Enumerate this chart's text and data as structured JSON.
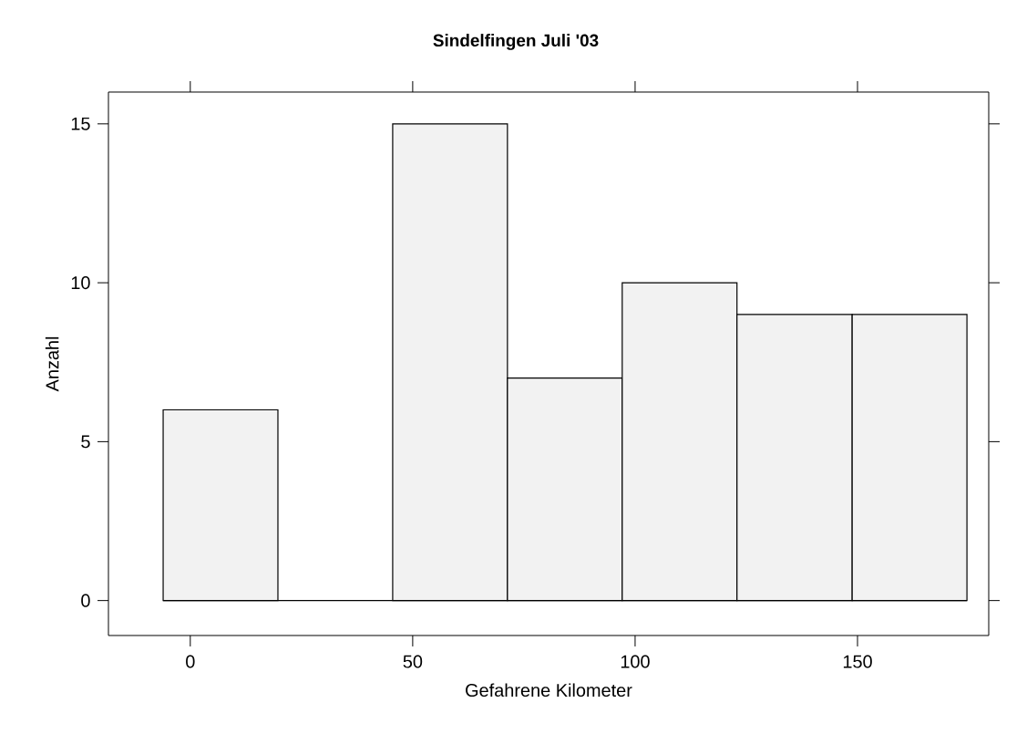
{
  "chart_data": {
    "type": "histogram",
    "title": "Sindelfingen Juli '03",
    "xlabel": "Gefahrene Kilometer",
    "ylabel": "Anzahl",
    "bins": [
      -6.1,
      19.7,
      45.5,
      71.3,
      97.1,
      122.9,
      148.8,
      174.6
    ],
    "values": [
      6,
      0,
      15,
      7,
      10,
      9,
      9
    ],
    "color": "#f2f2f2",
    "xlim": [
      -18.4,
      179.5
    ],
    "ylim": [
      -1.1,
      16
    ],
    "xticks": [
      0,
      50,
      100,
      150
    ],
    "yticks": [
      0,
      5,
      10,
      15
    ]
  }
}
